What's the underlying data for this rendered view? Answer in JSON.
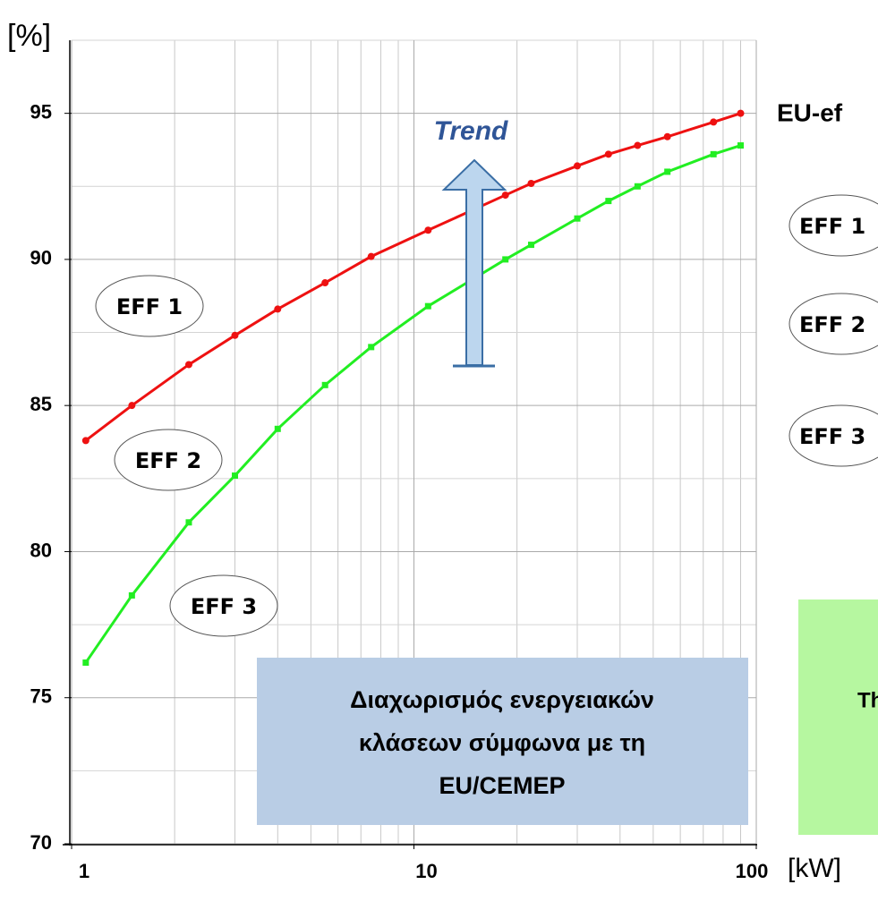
{
  "chart_data": {
    "type": "line",
    "y_unit": "[%]",
    "x_unit": "[kW]",
    "xlog": true,
    "grid": true,
    "x": [
      1.1,
      1.5,
      2.2,
      3,
      4,
      5.5,
      7.5,
      11,
      18.5,
      22,
      30,
      37,
      45,
      55,
      75,
      90
    ],
    "series": [
      {
        "name": "EFF 1",
        "color": "#ee1111",
        "values": [
          83.8,
          85.0,
          86.4,
          87.4,
          88.3,
          89.2,
          90.1,
          91.0,
          92.2,
          92.6,
          93.2,
          93.6,
          93.9,
          94.2,
          94.7,
          95.0
        ]
      },
      {
        "name": "EFF 2",
        "color": "#22ee22",
        "values": [
          76.2,
          78.5,
          81.0,
          82.6,
          84.2,
          85.7,
          87.0,
          88.4,
          90.0,
          90.5,
          91.4,
          92.0,
          92.5,
          93.0,
          93.6,
          93.9
        ]
      }
    ],
    "xlim": [
      1,
      100
    ],
    "xticks": [
      1,
      10,
      100
    ],
    "xminorticks": [
      2,
      3,
      4,
      5,
      6,
      7,
      8,
      9,
      20,
      30,
      40,
      50,
      60,
      70,
      80,
      90
    ],
    "ylim": [
      70,
      97.5
    ],
    "yticks": [
      70,
      75,
      80,
      85,
      90,
      95
    ],
    "yminorticks": [
      72.5,
      77.5,
      82.5,
      87.5,
      92.5,
      97.5
    ],
    "annotations": {
      "trend": "Trend",
      "eff_labels": [
        "EFF 1",
        "EFF 2",
        "EFF 3"
      ],
      "box": [
        "Διαχωρισμός ενεργειακών",
        "κλάσεων σύμφωνα με τη",
        "EU/CEMEP"
      ],
      "right_title": "EU-ef",
      "right_labels": [
        "EFF 1",
        "EFF 2",
        "EFF 3"
      ],
      "right_box": "Th"
    }
  }
}
